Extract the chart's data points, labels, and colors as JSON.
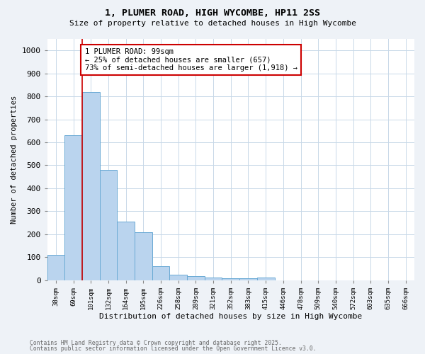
{
  "title": "1, PLUMER ROAD, HIGH WYCOMBE, HP11 2SS",
  "subtitle": "Size of property relative to detached houses in High Wycombe",
  "xlabel": "Distribution of detached houses by size in High Wycombe",
  "ylabel": "Number of detached properties",
  "categories": [
    "38sqm",
    "69sqm",
    "101sqm",
    "132sqm",
    "164sqm",
    "195sqm",
    "226sqm",
    "258sqm",
    "289sqm",
    "321sqm",
    "352sqm",
    "383sqm",
    "415sqm",
    "446sqm",
    "478sqm",
    "509sqm",
    "540sqm",
    "572sqm",
    "603sqm",
    "635sqm",
    "666sqm"
  ],
  "values": [
    110,
    630,
    820,
    480,
    255,
    210,
    62,
    25,
    18,
    12,
    8,
    7,
    10,
    0,
    0,
    0,
    0,
    0,
    0,
    0,
    0
  ],
  "bar_color": "#bad4ee",
  "bar_edge_color": "#6aaad4",
  "red_line_x": 1.5,
  "annotation_title": "1 PLUMER ROAD: 99sqm",
  "annotation_line2": "← 25% of detached houses are smaller (657)",
  "annotation_line3": "73% of semi-detached houses are larger (1,918) →",
  "annotation_box_color": "#cc0000",
  "ylim": [
    0,
    1050
  ],
  "yticks": [
    0,
    100,
    200,
    300,
    400,
    500,
    600,
    700,
    800,
    900,
    1000
  ],
  "footnote1": "Contains HM Land Registry data © Crown copyright and database right 2025.",
  "footnote2": "Contains public sector information licensed under the Open Government Licence v3.0.",
  "background_color": "#eef2f7",
  "plot_bg_color": "#ffffff",
  "grid_color": "#c8d8e8"
}
